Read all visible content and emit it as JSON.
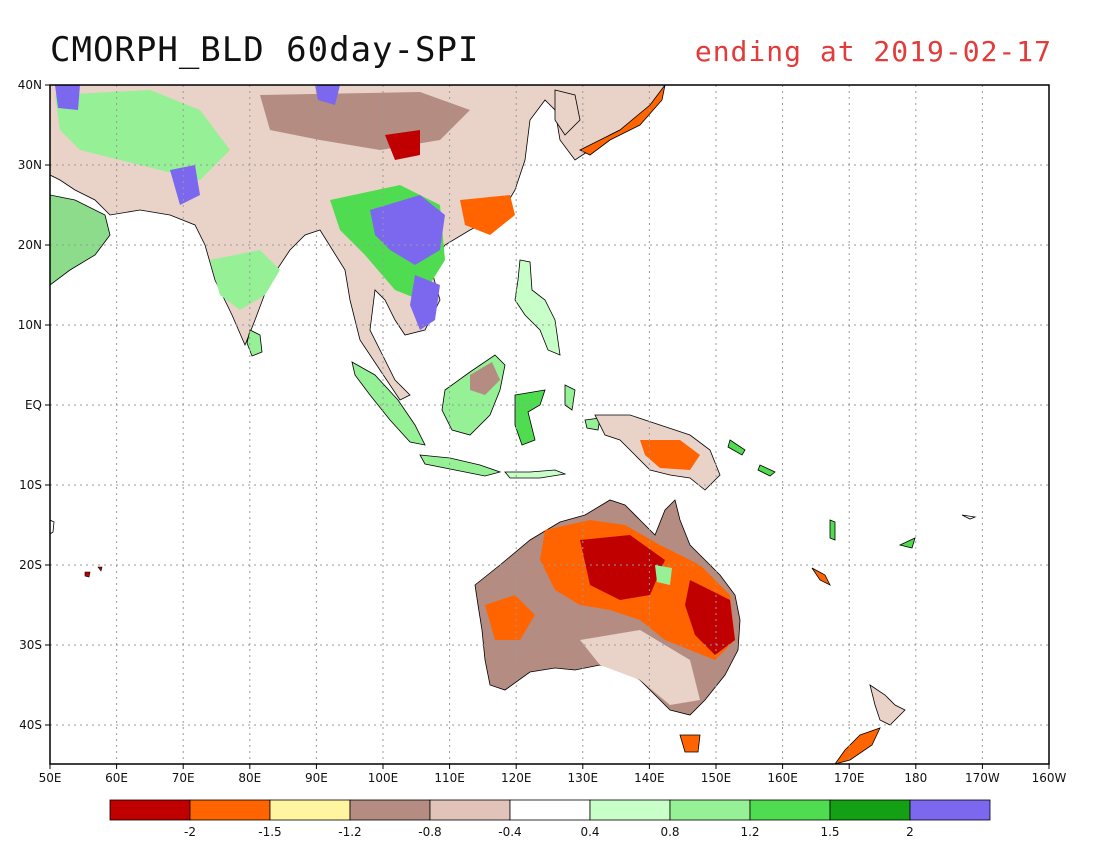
{
  "title": "CMORPH_BLD 60day-SPI",
  "subtitle": "ending at 2019-02-17",
  "map": {
    "lon_ticks": [
      "50E",
      "60E",
      "70E",
      "80E",
      "90E",
      "100E",
      "110E",
      "120E",
      "130E",
      "140E",
      "150E",
      "160E",
      "170E",
      "180",
      "170W",
      "160W"
    ],
    "lat_ticks": [
      "40N",
      "30N",
      "20N",
      "10N",
      "EQ",
      "10S",
      "20S",
      "30S",
      "40S"
    ],
    "grid": true,
    "colors": {
      "ocean": "#ffffff",
      "grid": "#9a9a9a",
      "frame": "#000000"
    }
  },
  "colorbar": {
    "colors": [
      "#c00000",
      "#ff6400",
      "#fff5a0",
      "#b48c82",
      "#e1c3b9",
      "#ffffff",
      "#c8ffc8",
      "#96f096",
      "#50dc50",
      "#14a014",
      "#7b68ee"
    ],
    "labels": [
      "-2",
      "-1.5",
      "-1.2",
      "-0.8",
      "-0.4",
      "0.4",
      "0.8",
      "1.2",
      "1.5",
      "2"
    ]
  }
}
